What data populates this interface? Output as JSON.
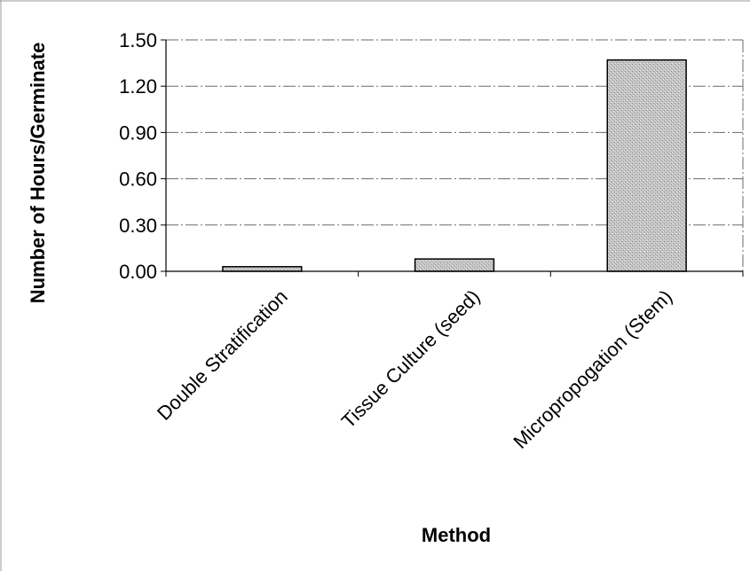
{
  "chart_data": {
    "type": "bar",
    "title": "",
    "xlabel": "Method",
    "ylabel": "Number of Hours/Germinate",
    "categories": [
      "Double Stratification",
      "Tissue Culture (seed)",
      "Micropropogation (Stem)"
    ],
    "values": [
      0.03,
      0.08,
      1.37
    ],
    "ylim": [
      0,
      1.5
    ],
    "yticks": [
      "0.00",
      "0.30",
      "0.60",
      "0.90",
      "1.20",
      "1.50"
    ],
    "grid": true,
    "legend": "none",
    "bar_color": "#bdbdbd",
    "bar_edge_color": "#000000"
  }
}
